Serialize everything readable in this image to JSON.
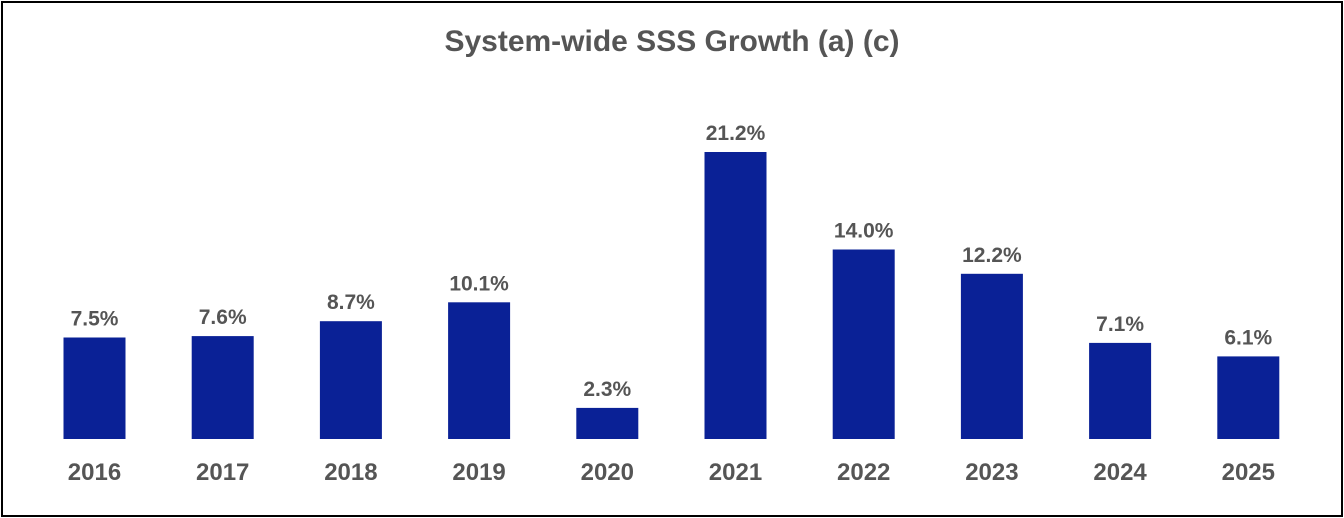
{
  "chart_data": {
    "type": "bar",
    "title": "System-wide SSS Growth (a) (c)",
    "categories": [
      "2016",
      "2017",
      "2018",
      "2019",
      "2020",
      "2021",
      "2022",
      "2023",
      "2024",
      "2025"
    ],
    "values": [
      7.5,
      7.6,
      8.7,
      10.1,
      2.3,
      21.2,
      14.0,
      12.2,
      7.1,
      6.1
    ],
    "value_labels": [
      "7.5%",
      "7.6%",
      "8.7%",
      "10.1%",
      "2.3%",
      "21.2%",
      "14.0%",
      "12.2%",
      "7.1%",
      "6.1%"
    ],
    "xlabel": "",
    "ylabel": "",
    "ylim": [
      0,
      21.2
    ],
    "grid": false,
    "legend": "none",
    "colors": {
      "bar": "#0a2196",
      "text": "#555555",
      "border": "#000000",
      "background": "#ffffff"
    }
  }
}
